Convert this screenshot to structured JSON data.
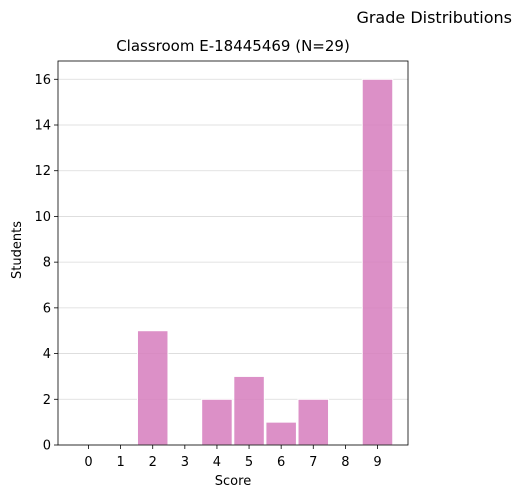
{
  "figure": {
    "suptitle": "Grade Distributions"
  },
  "chart_data": {
    "type": "bar",
    "title": "Classroom E-18445469 (N=29)",
    "xlabel": "Score",
    "ylabel": "Students",
    "categories": [
      "0",
      "1",
      "2",
      "3",
      "4",
      "5",
      "6",
      "7",
      "8",
      "9"
    ],
    "values": [
      0,
      0,
      5,
      0,
      2,
      3,
      1,
      2,
      0,
      16
    ],
    "yticks": [
      0,
      2,
      4,
      6,
      8,
      10,
      12,
      14,
      16
    ],
    "ylim": [
      0,
      16.8
    ],
    "grid": "y",
    "bar_color": "#d67dbd"
  }
}
